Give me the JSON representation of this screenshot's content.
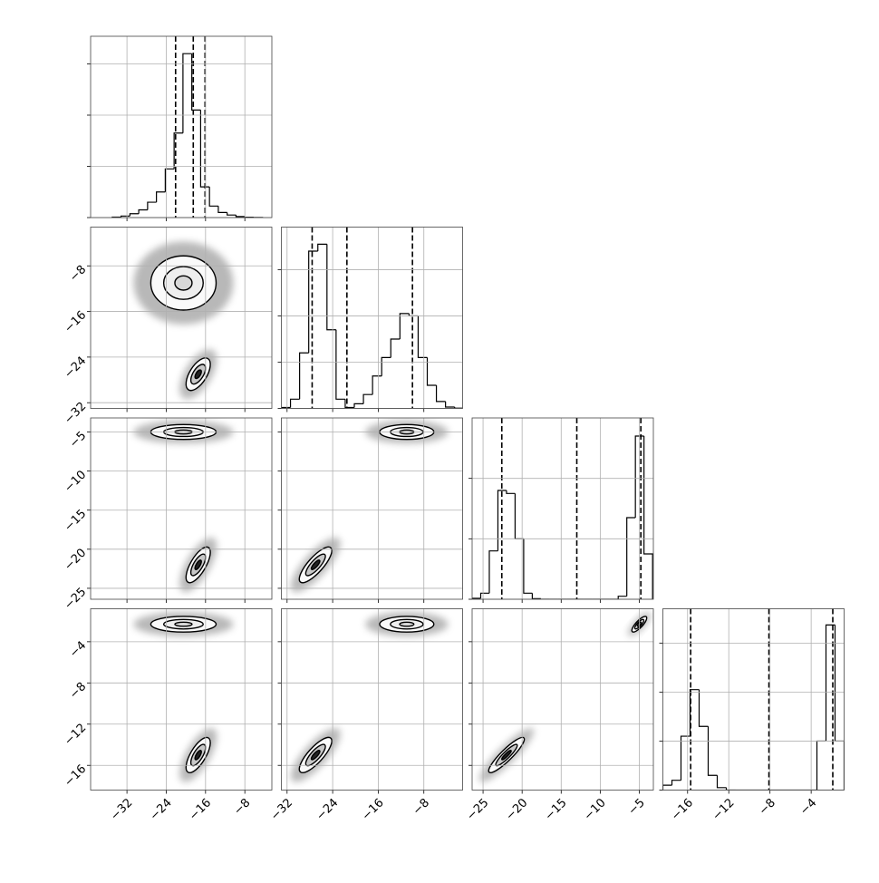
{
  "chart_data": {
    "type": "corner",
    "grid": true,
    "params": [
      {
        "lim": [
          -39.4,
          -2.5
        ],
        "ticks": [
          {
            "value": -32,
            "label": "−32"
          },
          {
            "value": -24,
            "label": "−24"
          },
          {
            "value": -16,
            "label": "−16"
          },
          {
            "value": -8,
            "label": "−8"
          }
        ],
        "quantiles": [
          -22.1,
          -18.5,
          -16.1
        ],
        "hist": {
          "bins": [
            -35,
            -33.2,
            -31.4,
            -29.6,
            -27.8,
            -26,
            -24.2,
            -22.4,
            -20.6,
            -18.8,
            -17,
            -15.2,
            -13.4,
            -11.6,
            -9.8,
            -8,
            -6.2,
            -4.4
          ],
          "counts": [
            20,
            60,
            150,
            300,
            600,
            1000,
            1900,
            3300,
            6400,
            4200,
            1200,
            450,
            200,
            100,
            40,
            15,
            5
          ],
          "ylim": [
            0,
            7080
          ],
          "yticks": [
            0,
            2000,
            4000,
            6000
          ]
        }
      },
      {
        "lim": [
          -33,
          -1.2
        ],
        "ticks": [
          {
            "value": -32,
            "label": "−32"
          },
          {
            "value": -24,
            "label": "−24"
          },
          {
            "value": -16,
            "label": "−16"
          },
          {
            "value": -8,
            "label": "−8"
          }
        ],
        "quantiles": [
          -27.6,
          -21.5,
          -10.0
        ],
        "hist": {
          "bins": [
            -33,
            -31.4,
            -29.8,
            -28.2,
            -26.6,
            -25,
            -23.4,
            -21.8,
            -20.2,
            -18.6,
            -17,
            -15.4,
            -13.8,
            -12.2,
            -10.6,
            -9,
            -7.4,
            -5.8,
            -4.2,
            -2.6,
            -1.0
          ],
          "counts": [
            20,
            200,
            1200,
            3400,
            3550,
            1700,
            200,
            20,
            100,
            300,
            700,
            1100,
            1500,
            2050,
            2000,
            1100,
            500,
            150,
            30,
            5
          ],
          "ylim": [
            0,
            3920
          ],
          "yticks": [
            0,
            1000,
            2000,
            3000
          ]
        }
      },
      {
        "lim": [
          -26.4,
          -3.2
        ],
        "ticks": [
          {
            "value": -25,
            "label": "−25"
          },
          {
            "value": -20,
            "label": "−20"
          },
          {
            "value": -15,
            "label": "−15"
          },
          {
            "value": -10,
            "label": "−10"
          },
          {
            "value": -5,
            "label": "−5"
          }
        ],
        "quantiles": [
          -22.6,
          -13.0,
          -4.8
        ],
        "hist": {
          "bins": [
            -26.4,
            -25.3,
            -24.2,
            -23.1,
            -22,
            -20.9,
            -19.8,
            -18.7,
            -17.6,
            -16.5,
            -15.4,
            -14.3,
            -13.2,
            -12.1,
            -11,
            -9.9,
            -8.8,
            -7.7,
            -6.6,
            -5.5,
            -4.4,
            -3.3
          ],
          "counts": [
            30,
            200,
            1600,
            3600,
            3500,
            2000,
            200,
            20,
            0,
            0,
            0,
            0,
            0,
            0,
            0,
            0,
            0,
            100,
            2700,
            5400,
            1500
          ],
          "ylim": [
            0,
            6000
          ],
          "yticks": [
            0,
            2000,
            4000
          ]
        }
      },
      {
        "lim": [
          -18.4,
          -0.8
        ],
        "ticks": [
          {
            "value": -16,
            "label": "−16"
          },
          {
            "value": -12,
            "label": "−12"
          },
          {
            "value": -8,
            "label": "−8"
          },
          {
            "value": -4,
            "label": "−4"
          }
        ],
        "quantiles": [
          -15.7,
          -8.1,
          -1.9
        ],
        "hist": {
          "bins": [
            -18.4,
            -17.52,
            -16.64,
            -15.76,
            -14.88,
            -14,
            -13.12,
            -12.24,
            -11.36,
            -10.48,
            -9.6,
            -8.72,
            -7.84,
            -6.96,
            -6.08,
            -5.2,
            -4.32,
            -3.44,
            -2.56,
            -1.68,
            -0.8
          ],
          "counts": [
            100,
            200,
            1100,
            2050,
            1300,
            300,
            50,
            0,
            0,
            0,
            0,
            0,
            0,
            0,
            0,
            0,
            0,
            1000,
            3370,
            1000
          ],
          "ylim": [
            0,
            3700
          ],
          "yticks": [
            0,
            1000,
            2000,
            3000
          ]
        }
      }
    ],
    "pairs": [
      [
        {
          "modes": [
            {
              "x": -20.5,
              "y": -11,
              "sx": 3.5,
              "sy": 2.5,
              "rho": 0
            },
            {
              "x": -17.5,
              "y": -27,
              "sx": 1.3,
              "sy": 1.5,
              "rho": 0.6
            }
          ]
        }
      ],
      [
        {
          "modes": [
            {
              "x": -20.5,
              "y": -5,
              "sx": 3.5,
              "sy": 0.5,
              "rho": 0
            },
            {
              "x": -17.5,
              "y": -22,
              "sx": 1.3,
              "sy": 1.2,
              "rho": 0.7
            }
          ]
        },
        {
          "modes": [
            {
              "x": -11,
              "y": -5,
              "sx": 2.5,
              "sy": 0.5,
              "rho": 0
            },
            {
              "x": -27,
              "y": -22,
              "sx": 1.5,
              "sy": 1.2,
              "rho": 0.8
            }
          ]
        }
      ],
      [
        {
          "modes": [
            {
              "x": -20.5,
              "y": -2.3,
              "sx": 3.5,
              "sy": 0.4,
              "rho": 0
            },
            {
              "x": -17.5,
              "y": -15,
              "sx": 1.3,
              "sy": 0.9,
              "rho": 0.7
            }
          ]
        },
        {
          "modes": [
            {
              "x": -11,
              "y": -2.3,
              "sx": 2.5,
              "sy": 0.4,
              "rho": 0
            },
            {
              "x": -27,
              "y": -15,
              "sx": 1.5,
              "sy": 0.9,
              "rho": 0.8
            }
          ]
        },
        {
          "modes": [
            {
              "x": -5,
              "y": -2.3,
              "sx": 0.5,
              "sy": 0.4,
              "rho": 0.8
            },
            {
              "x": -22,
              "y": -15,
              "sx": 1.2,
              "sy": 0.9,
              "rho": 0.9
            }
          ]
        }
      ]
    ]
  }
}
